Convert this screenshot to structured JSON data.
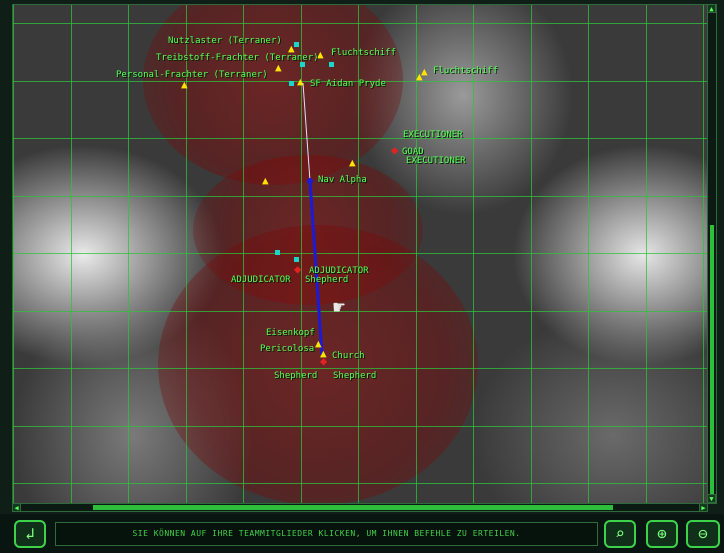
{
  "map": {
    "labels": {
      "nutzlaster": "Nutzlaster (Terraner)",
      "treibstoff": "Treibstoff-Frachter (Terraner)",
      "personal": "Personal-Frachter (Terraner)",
      "flucht1": "Fluchtschiff",
      "flucht2": "Fluchtschiff",
      "aidan": "SF Aidan Pryde",
      "executioner1": "EXECUTIONER",
      "goad": "GOAD",
      "executioner2": "EXECUTIONER",
      "navalpha": "Nav Alpha",
      "adjudicator1": "ADJUDICATOR",
      "adjudicator2": "ADJUDICATOR",
      "shepherd_top": "Shepherd",
      "eisenkopf": "Eisenkopf",
      "pericolosa": "Pericolosa",
      "church": "Church",
      "shepherd1": "Shepherd",
      "shepherd2": "Shepherd"
    }
  },
  "status_bar": {
    "message": "SIE KÖNNEN AUF IHRE TEAMMITGLIEDER KLICKEN, UM IHNEN BEFEHLE ZU ERTEILEN."
  },
  "icons": {
    "back": "return-arrow-icon",
    "zoom_fit": "zoom-search-icon",
    "zoom_in": "zoom-in-icon",
    "zoom_out": "zoom-out-icon",
    "friendly": "yellow-ship-icon",
    "enemy": "red-ship-icon",
    "waypoint": "cyan-waypoint-icon"
  },
  "colors": {
    "grid": "#2ec43a",
    "label": "#58ff58",
    "friendly": "#ffe400",
    "enemy": "#e52222",
    "waypoint": "#19d6c8",
    "track": "#1a1ad8"
  }
}
